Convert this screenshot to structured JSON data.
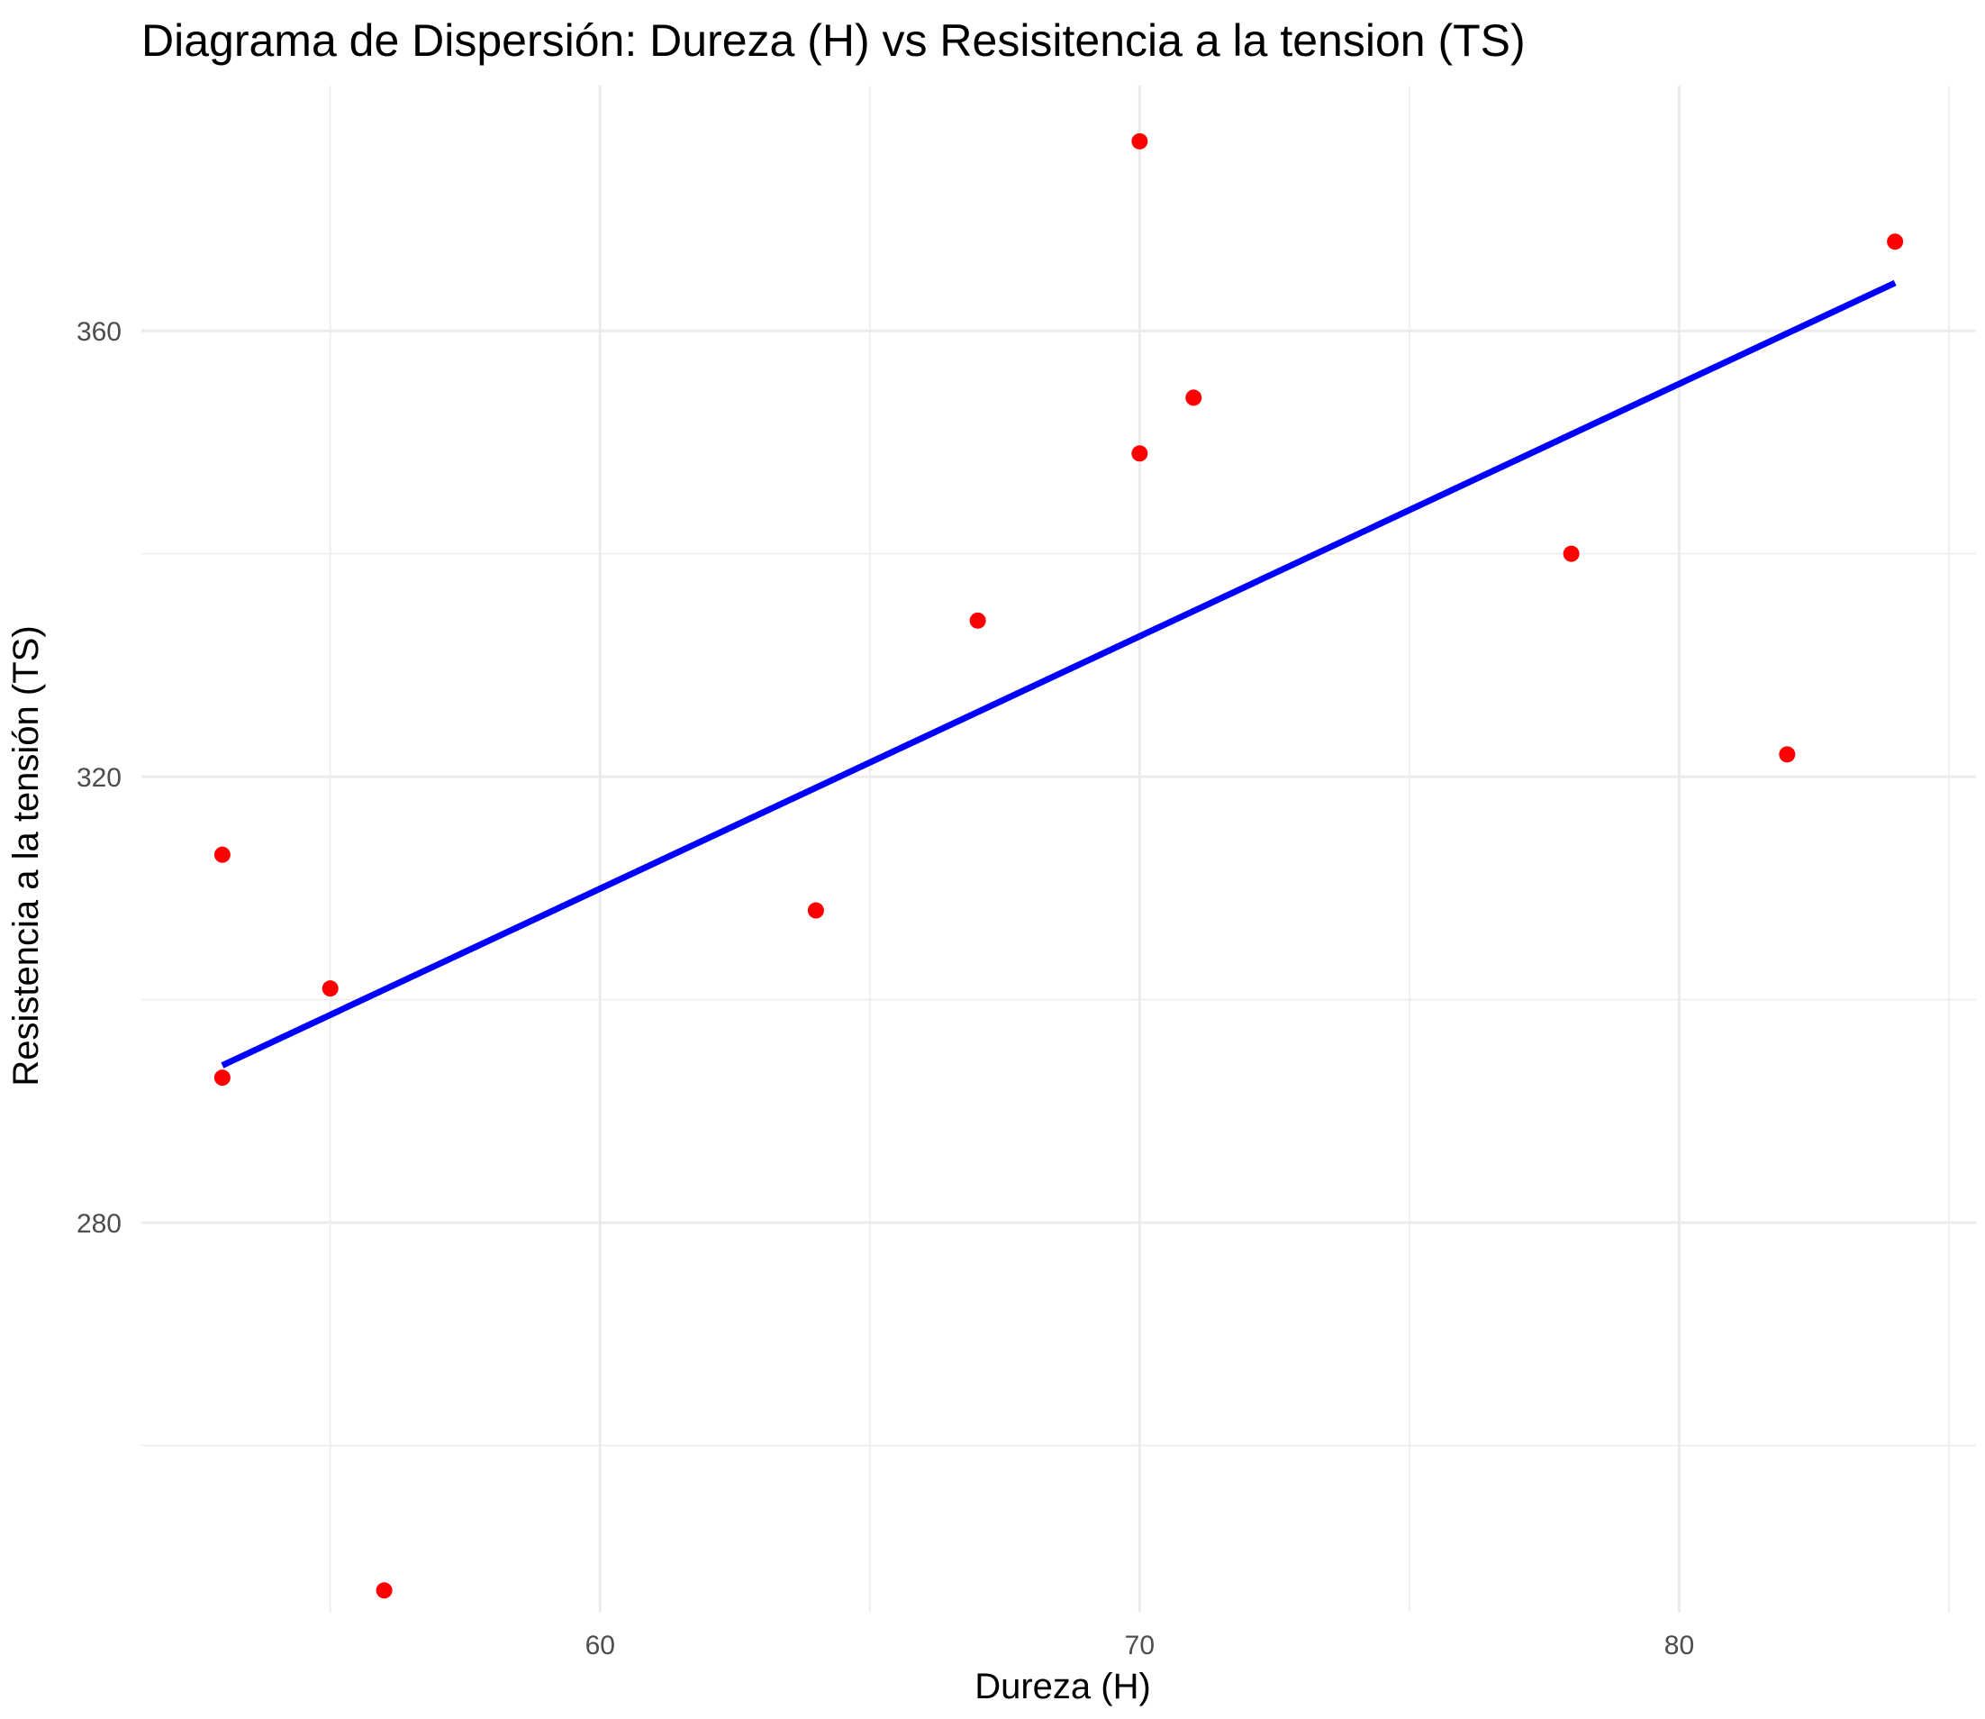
{
  "chart_data": {
    "type": "scatter",
    "title": "Diagrama de Dispersión: Dureza (H) vs Resisitencia a la tension (TS)",
    "xlabel": "Dureza (H)",
    "ylabel": "Resistencia a la tensión (TS)",
    "xlim": [
      51.5,
      85.5
    ],
    "ylim": [
      245,
      382
    ],
    "x_ticks": [
      60,
      70,
      80
    ],
    "y_ticks": [
      280,
      320,
      360
    ],
    "x_minor_ticks": [
      55,
      65,
      75,
      85
    ],
    "y_minor_ticks": [
      260,
      300,
      340
    ],
    "grid": true,
    "point_color": "#ff0000",
    "line_color": "#0000ff",
    "points": [
      {
        "x": 53,
        "y": 313
      },
      {
        "x": 53,
        "y": 293
      },
      {
        "x": 55,
        "y": 301
      },
      {
        "x": 56,
        "y": 247
      },
      {
        "x": 64,
        "y": 308
      },
      {
        "x": 67,
        "y": 334
      },
      {
        "x": 70,
        "y": 377
      },
      {
        "x": 70,
        "y": 349
      },
      {
        "x": 71,
        "y": 354
      },
      {
        "x": 78,
        "y": 340
      },
      {
        "x": 82,
        "y": 322
      },
      {
        "x": 84,
        "y": 368
      }
    ],
    "regression_line": {
      "x": [
        53,
        84
      ],
      "y": [
        294.1,
        364.3
      ]
    }
  }
}
